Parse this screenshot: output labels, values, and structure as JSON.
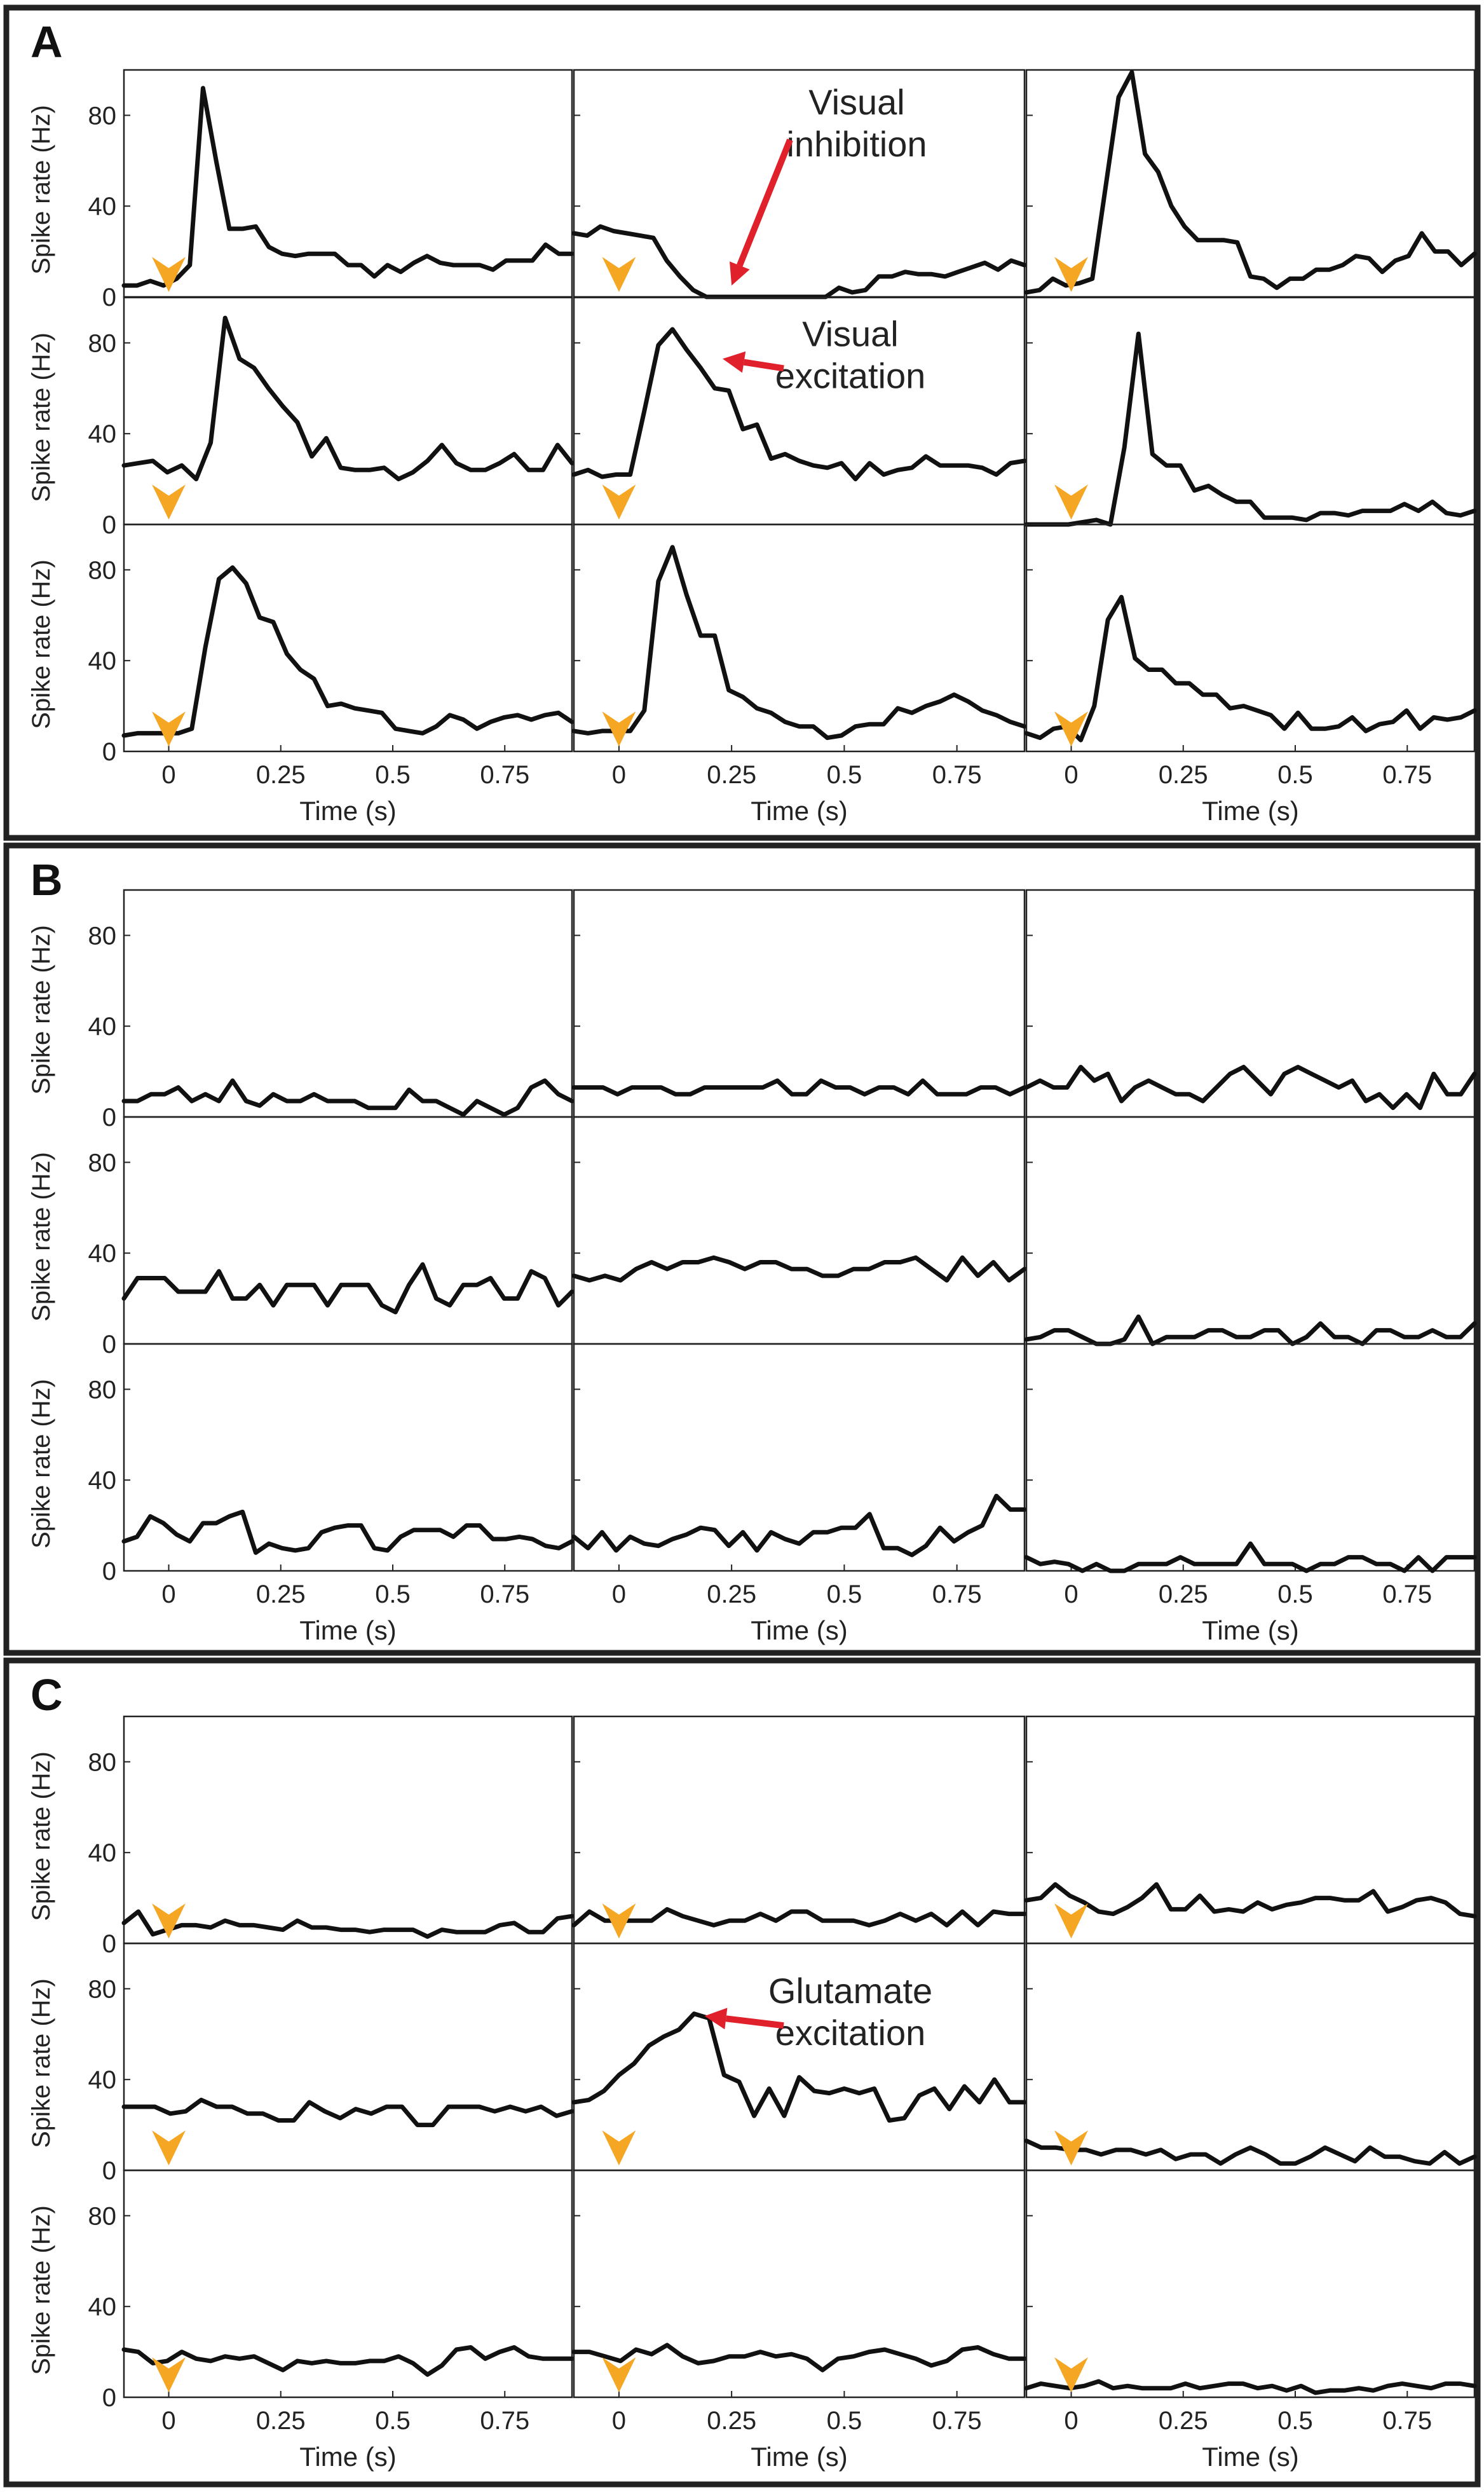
{
  "figure": {
    "axis_ylabel": "Spike rate (Hz)",
    "axis_xlabel": "Time (s)",
    "y_ticks": [
      "0",
      "40",
      "80"
    ],
    "x_ticks": [
      "0",
      "0.25",
      "0.5",
      "0.75"
    ],
    "colors": {
      "trace": "#111111",
      "marker": "#f5a623",
      "arrow": "#e0202a",
      "frame": "#222222"
    }
  },
  "chart_data": [
    {
      "type": "line",
      "panel": "A",
      "title": "A",
      "xlabel": "Time (s)",
      "ylabel": "Spike rate (Hz)",
      "xlim": [
        -0.1,
        0.9
      ],
      "ylim": [
        0,
        100
      ],
      "y_ticks": [
        0,
        40,
        80
      ],
      "x_ticks": [
        0,
        0.25,
        0.5,
        0.75
      ],
      "stimulus_marker_time": 0,
      "subplots": [
        {
          "row": 0,
          "col": 0,
          "stim_marker": true,
          "values": [
            5,
            5,
            7,
            5,
            8,
            14,
            92,
            60,
            30,
            30,
            31,
            22,
            19,
            18,
            19,
            19,
            19,
            14,
            14,
            9,
            14,
            11,
            15,
            18,
            15,
            14,
            14,
            14,
            12,
            16,
            16,
            16,
            23,
            19,
            19
          ]
        },
        {
          "row": 0,
          "col": 1,
          "stim_marker": true,
          "values": [
            28,
            27,
            31,
            29,
            28,
            27,
            26,
            16,
            9,
            3,
            0,
            0,
            0,
            0,
            0,
            0,
            0,
            0,
            0,
            0,
            4,
            2,
            3,
            9,
            9,
            11,
            10,
            10,
            9,
            11,
            13,
            15,
            12,
            16,
            14
          ]
        },
        {
          "row": 0,
          "col": 2,
          "stim_marker": true,
          "values": [
            2,
            3,
            8,
            5,
            6,
            8,
            48,
            88,
            99,
            63,
            55,
            40,
            31,
            25,
            25,
            25,
            24,
            9,
            8,
            4,
            8,
            8,
            12,
            12,
            14,
            18,
            17,
            11,
            16,
            18,
            28,
            20,
            20,
            14,
            19
          ]
        },
        {
          "row": 1,
          "col": 0,
          "stim_marker": true,
          "values": [
            26,
            27,
            28,
            23,
            26,
            20,
            36,
            91,
            73,
            69,
            60,
            52,
            45,
            30,
            38,
            25,
            24,
            24,
            25,
            20,
            23,
            28,
            35,
            27,
            24,
            24,
            27,
            31,
            24,
            24,
            35,
            27
          ]
        },
        {
          "row": 1,
          "col": 1,
          "stim_marker": true,
          "values": [
            22,
            24,
            21,
            22,
            22,
            50,
            79,
            86,
            77,
            69,
            60,
            59,
            42,
            44,
            29,
            31,
            28,
            26,
            25,
            27,
            20,
            27,
            22,
            24,
            25,
            30,
            26,
            26,
            26,
            25,
            22,
            27,
            28
          ]
        },
        {
          "row": 1,
          "col": 2,
          "stim_marker": true,
          "values": [
            0,
            0,
            0,
            0,
            1,
            2,
            0,
            34,
            84,
            31,
            26,
            26,
            15,
            17,
            13,
            10,
            10,
            3,
            3,
            3,
            2,
            5,
            5,
            4,
            6,
            6,
            6,
            9,
            6,
            10,
            5,
            4,
            6
          ]
        },
        {
          "row": 2,
          "col": 0,
          "stim_marker": true,
          "values": [
            7,
            8,
            8,
            8,
            8,
            10,
            46,
            76,
            81,
            74,
            59,
            57,
            43,
            36,
            32,
            20,
            21,
            19,
            18,
            17,
            10,
            9,
            8,
            11,
            16,
            14,
            10,
            13,
            15,
            16,
            14,
            16,
            17,
            13
          ]
        },
        {
          "row": 2,
          "col": 1,
          "stim_marker": true,
          "values": [
            9,
            8,
            9,
            9,
            9,
            18,
            75,
            90,
            69,
            51,
            51,
            27,
            24,
            19,
            17,
            13,
            11,
            11,
            6,
            7,
            11,
            12,
            12,
            19,
            17,
            20,
            22,
            25,
            22,
            18,
            16,
            13,
            11
          ]
        },
        {
          "row": 2,
          "col": 2,
          "stim_marker": true,
          "values": [
            8,
            6,
            10,
            11,
            5,
            20,
            58,
            68,
            41,
            36,
            36,
            30,
            30,
            25,
            25,
            19,
            20,
            18,
            16,
            10,
            17,
            10,
            10,
            11,
            15,
            9,
            12,
            13,
            18,
            10,
            15,
            14,
            15,
            18
          ]
        }
      ],
      "annotations": [
        {
          "subplot": [
            0,
            1
          ],
          "text_line1": "Visual",
          "text_line2": "inhibition",
          "points_to_time": 0.25,
          "points_to_value": 5
        },
        {
          "subplot": [
            1,
            1
          ],
          "text_line1": "Visual",
          "text_line2": "excitation",
          "points_to_time": 0.23,
          "points_to_value": 73
        }
      ]
    },
    {
      "type": "line",
      "panel": "B",
      "title": "B",
      "xlabel": "Time (s)",
      "ylabel": "Spike rate (Hz)",
      "xlim": [
        -0.1,
        0.9
      ],
      "ylim": [
        0,
        100
      ],
      "y_ticks": [
        0,
        40,
        80
      ],
      "x_ticks": [
        0,
        0.25,
        0.5,
        0.75
      ],
      "stimulus_marker_time": 0,
      "subplots": [
        {
          "row": 0,
          "col": 0,
          "stim_marker": false,
          "values": [
            7,
            7,
            10,
            10,
            13,
            7,
            10,
            7,
            16,
            7,
            5,
            10,
            7,
            7,
            10,
            7,
            7,
            7,
            4,
            4,
            4,
            12,
            7,
            7,
            4,
            1,
            7,
            4,
            1,
            4,
            13,
            16,
            10,
            7
          ]
        },
        {
          "row": 0,
          "col": 1,
          "stim_marker": false,
          "values": [
            13,
            13,
            13,
            10,
            13,
            13,
            13,
            10,
            10,
            13,
            13,
            13,
            13,
            13,
            16,
            10,
            10,
            16,
            13,
            13,
            10,
            13,
            13,
            10,
            16,
            10,
            10,
            10,
            13,
            13,
            10,
            13
          ]
        },
        {
          "row": 0,
          "col": 2,
          "stim_marker": false,
          "values": [
            13,
            16,
            13,
            13,
            22,
            16,
            19,
            7,
            13,
            16,
            13,
            10,
            10,
            7,
            13,
            19,
            22,
            16,
            10,
            19,
            22,
            19,
            16,
            13,
            16,
            7,
            10,
            4,
            10,
            4,
            19,
            10,
            10,
            19
          ]
        },
        {
          "row": 1,
          "col": 0,
          "stim_marker": false,
          "values": [
            20,
            29,
            29,
            29,
            23,
            23,
            23,
            32,
            20,
            20,
            26,
            17,
            26,
            26,
            26,
            17,
            26,
            26,
            26,
            17,
            14,
            26,
            35,
            20,
            17,
            26,
            26,
            29,
            20,
            20,
            32,
            29,
            17,
            23
          ]
        },
        {
          "row": 1,
          "col": 1,
          "stim_marker": false,
          "values": [
            30,
            28,
            30,
            28,
            33,
            36,
            33,
            36,
            36,
            38,
            36,
            33,
            36,
            36,
            33,
            33,
            30,
            30,
            33,
            33,
            36,
            36,
            38,
            33,
            28,
            38,
            30,
            36,
            28,
            33
          ]
        },
        {
          "row": 1,
          "col": 2,
          "stim_marker": false,
          "values": [
            2,
            3,
            6,
            6,
            3,
            0,
            0,
            2,
            12,
            0,
            3,
            3,
            3,
            6,
            6,
            3,
            3,
            6,
            6,
            0,
            3,
            9,
            3,
            3,
            0,
            6,
            6,
            3,
            3,
            6,
            3,
            3,
            9
          ]
        },
        {
          "row": 2,
          "col": 0,
          "stim_marker": false,
          "values": [
            13,
            15,
            24,
            21,
            16,
            13,
            21,
            21,
            24,
            26,
            8,
            12,
            10,
            9,
            10,
            17,
            19,
            20,
            20,
            10,
            9,
            15,
            18,
            18,
            18,
            15,
            20,
            20,
            14,
            14,
            15,
            14,
            11,
            10,
            13
          ]
        },
        {
          "row": 2,
          "col": 1,
          "stim_marker": false,
          "values": [
            15,
            10,
            17,
            9,
            15,
            12,
            11,
            14,
            16,
            19,
            18,
            11,
            17,
            9,
            17,
            14,
            12,
            17,
            17,
            19,
            19,
            25,
            10,
            10,
            7,
            11,
            19,
            13,
            17,
            20,
            33,
            27,
            27
          ]
        },
        {
          "row": 2,
          "col": 2,
          "stim_marker": false,
          "values": [
            6,
            3,
            4,
            3,
            0,
            3,
            0,
            0,
            3,
            3,
            3,
            6,
            3,
            3,
            3,
            3,
            12,
            3,
            3,
            3,
            0,
            3,
            3,
            6,
            6,
            3,
            3,
            0,
            6,
            0,
            6,
            6,
            6
          ]
        }
      ]
    },
    {
      "type": "line",
      "panel": "C",
      "title": "C",
      "xlabel": "Time (s)",
      "ylabel": "Spike rate (Hz)",
      "xlim": [
        -0.1,
        0.9
      ],
      "ylim": [
        0,
        100
      ],
      "y_ticks": [
        0,
        40,
        80
      ],
      "x_ticks": [
        0,
        0.25,
        0.5,
        0.75
      ],
      "stimulus_marker_time": 0,
      "subplots": [
        {
          "row": 0,
          "col": 0,
          "stim_marker": true,
          "values": [
            9,
            14,
            4,
            6,
            8,
            8,
            7,
            10,
            8,
            8,
            7,
            6,
            10,
            7,
            7,
            6,
            6,
            5,
            6,
            6,
            6,
            3,
            6,
            5,
            5,
            5,
            8,
            9,
            5,
            5,
            11,
            12
          ]
        },
        {
          "row": 0,
          "col": 1,
          "stim_marker": true,
          "values": [
            8,
            14,
            10,
            10,
            10,
            10,
            15,
            12,
            10,
            8,
            10,
            10,
            13,
            10,
            14,
            14,
            10,
            10,
            10,
            8,
            10,
            13,
            10,
            13,
            8,
            14,
            8,
            14,
            13,
            13
          ]
        },
        {
          "row": 0,
          "col": 2,
          "stim_marker": true,
          "values": [
            19,
            20,
            26,
            21,
            18,
            14,
            13,
            16,
            20,
            26,
            15,
            15,
            21,
            14,
            15,
            14,
            18,
            15,
            17,
            18,
            20,
            20,
            19,
            19,
            23,
            14,
            16,
            19,
            20,
            18,
            13,
            12
          ]
        },
        {
          "row": 1,
          "col": 0,
          "stim_marker": true,
          "values": [
            28,
            28,
            28,
            25,
            26,
            31,
            28,
            28,
            25,
            25,
            22,
            22,
            30,
            26,
            23,
            27,
            25,
            28,
            28,
            20,
            20,
            28,
            28,
            28,
            26,
            28,
            26,
            28,
            24,
            26
          ]
        },
        {
          "row": 1,
          "col": 1,
          "stim_marker": true,
          "values": [
            30,
            31,
            35,
            42,
            47,
            55,
            59,
            62,
            69,
            67,
            42,
            39,
            24,
            36,
            24,
            41,
            35,
            34,
            36,
            34,
            36,
            22,
            23,
            33,
            36,
            27,
            37,
            30,
            40,
            30,
            30
          ]
        },
        {
          "row": 1,
          "col": 2,
          "stim_marker": true,
          "values": [
            13,
            10,
            10,
            9,
            9,
            7,
            9,
            9,
            7,
            9,
            5,
            7,
            7,
            3,
            7,
            10,
            7,
            3,
            3,
            6,
            10,
            7,
            4,
            10,
            6,
            6,
            4,
            3,
            8,
            3,
            6
          ]
        },
        {
          "row": 2,
          "col": 0,
          "stim_marker": true,
          "values": [
            21,
            20,
            15,
            16,
            20,
            17,
            16,
            18,
            17,
            18,
            15,
            12,
            16,
            15,
            16,
            15,
            15,
            16,
            16,
            18,
            15,
            10,
            14,
            21,
            22,
            17,
            20,
            22,
            18,
            17,
            17,
            17
          ]
        },
        {
          "row": 2,
          "col": 1,
          "stim_marker": true,
          "values": [
            20,
            20,
            18,
            16,
            21,
            19,
            23,
            18,
            15,
            16,
            18,
            18,
            20,
            18,
            19,
            17,
            12,
            17,
            18,
            20,
            21,
            19,
            17,
            14,
            16,
            21,
            22,
            19,
            17,
            17
          ]
        },
        {
          "row": 2,
          "col": 2,
          "stim_marker": true,
          "values": [
            4,
            6,
            5,
            4,
            5,
            7,
            4,
            5,
            4,
            4,
            4,
            6,
            4,
            5,
            6,
            6,
            4,
            5,
            3,
            5,
            2,
            3,
            3,
            4,
            3,
            5,
            6,
            5,
            4,
            6,
            6,
            5
          ]
        }
      ],
      "annotations": [
        {
          "subplot": [
            1,
            1
          ],
          "text_line1": "Glutamate",
          "text_line2": "excitation",
          "points_to_time": 0.19,
          "points_to_value": 68
        }
      ]
    }
  ]
}
